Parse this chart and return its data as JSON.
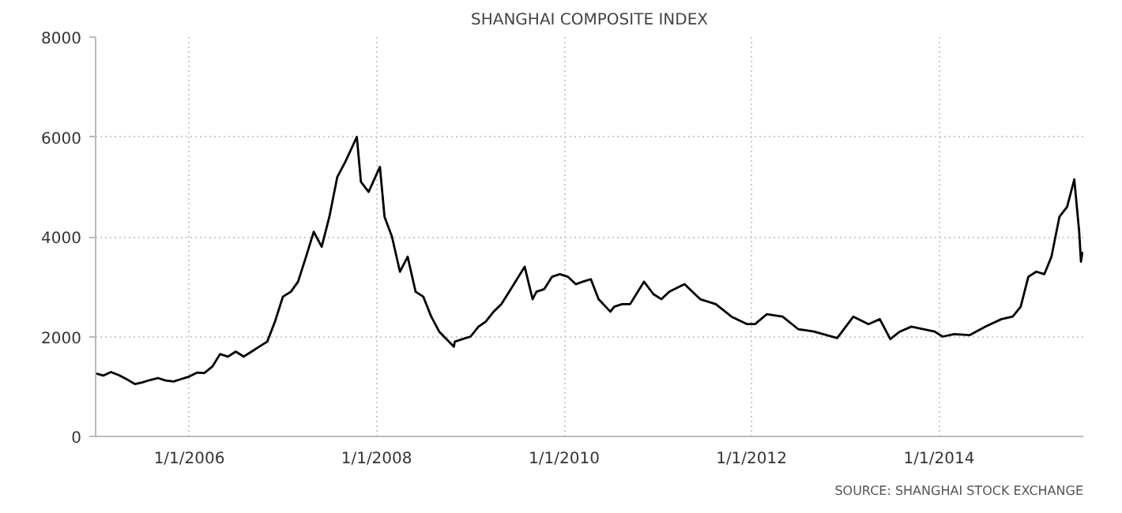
{
  "chart_data": {
    "type": "line",
    "title": "SHANGHAI COMPOSITE INDEX",
    "annotations": [
      "SOURCE: SHANGHAI STOCK EXCHANGE"
    ],
    "x": [
      "2005-01-04",
      "2005-02-01",
      "2005-03-01",
      "2005-04-01",
      "2005-05-01",
      "2005-06-03",
      "2005-07-01",
      "2005-08-01",
      "2005-09-01",
      "2005-10-01",
      "2005-11-01",
      "2005-12-01",
      "2006-01-01",
      "2006-02-01",
      "2006-03-01",
      "2006-04-01",
      "2006-05-01",
      "2006-06-01",
      "2006-07-01",
      "2006-08-01",
      "2006-09-01",
      "2006-10-01",
      "2006-11-01",
      "2006-12-01",
      "2007-01-01",
      "2007-02-01",
      "2007-03-01",
      "2007-04-01",
      "2007-05-01",
      "2007-06-01",
      "2007-07-01",
      "2007-08-01",
      "2007-09-01",
      "2007-10-16",
      "2007-11-01",
      "2007-12-01",
      "2008-01-14",
      "2008-02-01",
      "2008-03-01",
      "2008-04-01",
      "2008-05-01",
      "2008-06-01",
      "2008-07-01",
      "2008-08-01",
      "2008-09-01",
      "2008-10-28",
      "2008-11-01",
      "2008-12-01",
      "2009-01-01",
      "2009-02-01",
      "2009-03-01",
      "2009-04-01",
      "2009-05-01",
      "2009-06-01",
      "2009-07-31",
      "2009-08-31",
      "2009-09-15",
      "2009-10-15",
      "2009-11-15",
      "2009-12-15",
      "2010-01-15",
      "2010-02-15",
      "2010-03-15",
      "2010-04-15",
      "2010-05-15",
      "2010-06-30",
      "2010-07-15",
      "2010-08-15",
      "2010-09-15",
      "2010-11-08",
      "2010-12-15",
      "2011-01-15",
      "2011-02-15",
      "2011-04-15",
      "2011-06-15",
      "2011-08-15",
      "2011-10-15",
      "2011-12-15",
      "2012-01-15",
      "2012-03-01",
      "2012-05-01",
      "2012-07-01",
      "2012-09-01",
      "2012-11-30",
      "2013-02-01",
      "2013-04-01",
      "2013-05-15",
      "2013-06-25",
      "2013-08-01",
      "2013-09-15",
      "2013-11-01",
      "2013-12-15",
      "2014-01-15",
      "2014-03-01",
      "2014-05-01",
      "2014-07-01",
      "2014-09-01",
      "2014-10-15",
      "2014-11-15",
      "2014-12-15",
      "2015-01-15",
      "2015-02-15",
      "2015-03-15",
      "2015-04-15",
      "2015-05-15",
      "2015-06-12",
      "2015-07-01",
      "2015-07-08",
      "2015-07-14"
    ],
    "values": [
      1260,
      1220,
      1290,
      1230,
      1150,
      1050,
      1080,
      1130,
      1170,
      1120,
      1100,
      1150,
      1200,
      1280,
      1270,
      1400,
      1650,
      1600,
      1700,
      1600,
      1700,
      1800,
      1900,
      2300,
      2800,
      2900,
      3100,
      3600,
      4100,
      3800,
      4400,
      5200,
      5500,
      6000,
      5100,
      4900,
      5400,
      4400,
      4000,
      3300,
      3600,
      2900,
      2800,
      2400,
      2100,
      1800,
      1900,
      1950,
      2000,
      2200,
      2300,
      2500,
      2650,
      2900,
      3400,
      2750,
      2900,
      2950,
      3200,
      3250,
      3200,
      3050,
      3100,
      3150,
      2750,
      2500,
      2600,
      2650,
      2650,
      3100,
      2850,
      2750,
      2900,
      3050,
      2750,
      2650,
      2400,
      2250,
      2250,
      2450,
      2400,
      2150,
      2100,
      1970,
      2400,
      2250,
      2350,
      1950,
      2100,
      2200,
      2150,
      2100,
      2000,
      2050,
      2030,
      2200,
      2350,
      2400,
      2600,
      3200,
      3300,
      3250,
      3600,
      4400,
      4600,
      5150,
      4100,
      3500,
      3700
    ],
    "color": "#000000",
    "xlim": [
      "2005-01-01",
      "2015-07-17"
    ],
    "xticks": [
      {
        "value": "2006-01-01",
        "label": "1/1/2006"
      },
      {
        "value": "2008-01-01",
        "label": "1/1/2008"
      },
      {
        "value": "2010-01-01",
        "label": "1/1/2010"
      },
      {
        "value": "2012-01-01",
        "label": "1/1/2012"
      },
      {
        "value": "2014-01-01",
        "label": "1/1/2014"
      }
    ],
    "ylim": [
      0,
      8000
    ],
    "yticks": [
      0,
      2000,
      4000,
      6000,
      8000
    ],
    "grid": true,
    "marker": "none",
    "line_style": "solid"
  }
}
